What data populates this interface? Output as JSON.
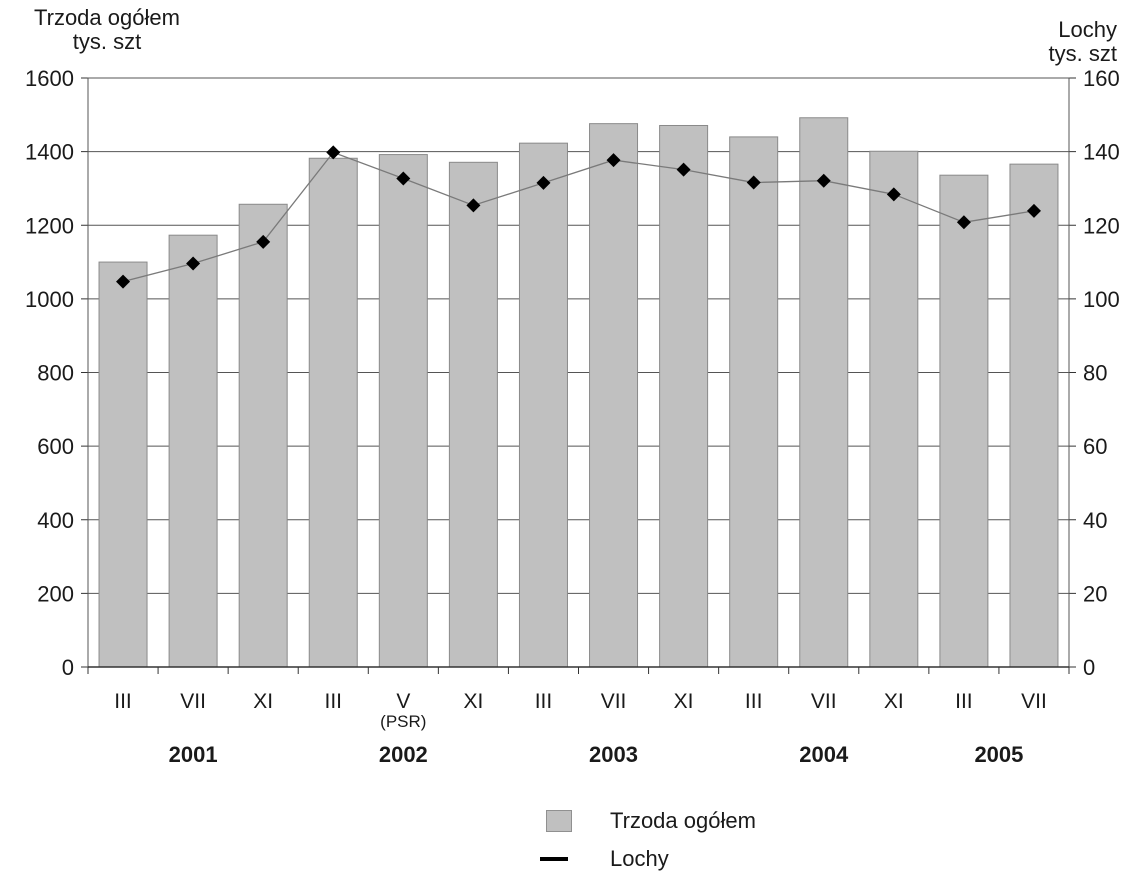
{
  "chart_data": {
    "type": "bar",
    "left_axis_title": [
      "Trzoda ogółem",
      "tys. szt"
    ],
    "right_axis_title": [
      "Lochy",
      "tys. szt"
    ],
    "categories": [
      "III",
      "VII",
      "XI",
      "III",
      "V",
      "XI",
      "III",
      "VII",
      "XI",
      "III",
      "VII",
      "XI",
      "III",
      "VII"
    ],
    "category_sublabels": [
      "",
      "",
      "",
      "",
      "(PSR)",
      "",
      "",
      "",
      "",
      "",
      "",
      "",
      "",
      ""
    ],
    "year_labels": [
      {
        "label": "2001",
        "span": [
          0,
          2
        ]
      },
      {
        "label": "2002",
        "span": [
          3,
          5
        ]
      },
      {
        "label": "2003",
        "span": [
          6,
          8
        ]
      },
      {
        "label": "2004",
        "span": [
          9,
          11
        ]
      },
      {
        "label": "2005",
        "span": [
          12,
          13
        ]
      }
    ],
    "ylim_left": [
      0,
      1600
    ],
    "ylim_right": [
      0,
      160
    ],
    "yticks_left": [
      0,
      200,
      400,
      600,
      800,
      1000,
      1200,
      1400,
      1600
    ],
    "yticks_right": [
      0,
      20,
      40,
      60,
      80,
      100,
      120,
      140,
      160
    ],
    "grid": true,
    "legend_position": "bottom",
    "series": [
      {
        "name": "Trzoda ogółem",
        "type": "bar",
        "axis": "left",
        "values": [
          1100,
          1173,
          1257,
          1382,
          1392,
          1371,
          1423,
          1476,
          1471,
          1440,
          1492,
          1401,
          1336,
          1366
        ],
        "color": "#c0c0c0"
      },
      {
        "name": "Lochy",
        "type": "line",
        "axis": "right",
        "values": [
          104.7,
          109.6,
          115.5,
          139.8,
          132.7,
          125.4,
          131.5,
          137.7,
          135.1,
          131.6,
          132.1,
          128.4,
          120.8,
          123.9
        ],
        "color": "#000000"
      }
    ]
  }
}
